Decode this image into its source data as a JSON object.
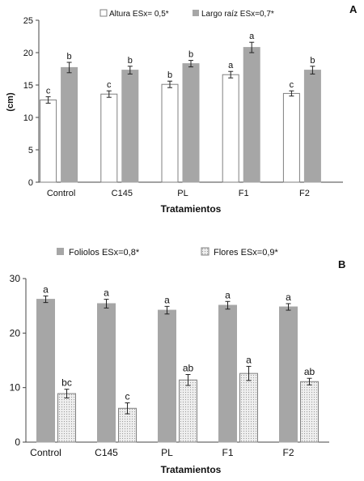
{
  "chart_data": [
    {
      "type": "bar",
      "panel_label": "A",
      "categories": [
        "Control",
        "C145",
        "PL",
        "F1",
        "F2"
      ],
      "xlabel": "Tratamientos",
      "ylabel": "(cm)",
      "ylim": [
        0,
        25
      ],
      "yticks": [
        0,
        5,
        10,
        15,
        20,
        25
      ],
      "grid": false,
      "legend_position": "top",
      "series": [
        {
          "name": "Altura ESx= 0,5*",
          "values": [
            12.7,
            13.6,
            15.1,
            16.6,
            13.7
          ],
          "errors": [
            0.5,
            0.5,
            0.5,
            0.5,
            0.4
          ],
          "letters": [
            "c",
            "c",
            "b",
            "a",
            "c"
          ],
          "fill": "#ffffff",
          "stroke": "#7f7f7f"
        },
        {
          "name": "Largo raíz ESx=0,7*",
          "values": [
            17.7,
            17.3,
            18.3,
            20.8,
            17.3
          ],
          "errors": [
            0.8,
            0.6,
            0.5,
            0.8,
            0.6
          ],
          "letters": [
            "b",
            "b",
            "b",
            "a",
            "b"
          ],
          "fill": "#a6a6a6",
          "stroke": "#a6a6a6"
        }
      ]
    },
    {
      "type": "bar",
      "panel_label": "B",
      "categories": [
        "Control",
        "C145",
        "PL",
        "F1",
        "F2"
      ],
      "xlabel": "Tratamientos",
      "ylabel": "",
      "ylim": [
        0,
        30
      ],
      "yticks": [
        0,
        10,
        20,
        30
      ],
      "grid": false,
      "legend_position": "top",
      "series": [
        {
          "name": "Foliolos ESx=0,8*",
          "values": [
            26.2,
            25.4,
            24.2,
            25.1,
            24.8
          ],
          "errors": [
            0.6,
            0.8,
            0.7,
            0.7,
            0.6
          ],
          "letters": [
            "a",
            "a",
            "a",
            "a",
            "a"
          ],
          "fill": "#a6a6a6",
          "stroke": "#a6a6a6"
        },
        {
          "name": "Flores ESx=0,9*",
          "values": [
            8.9,
            6.2,
            11.4,
            12.6,
            11.1
          ],
          "errors": [
            0.8,
            1.0,
            1.0,
            1.3,
            0.6
          ],
          "letters": [
            "bc",
            "c",
            "ab",
            "a",
            "ab"
          ],
          "fill": "#e6e6e6",
          "stroke": "#7f7f7f"
        }
      ]
    }
  ]
}
